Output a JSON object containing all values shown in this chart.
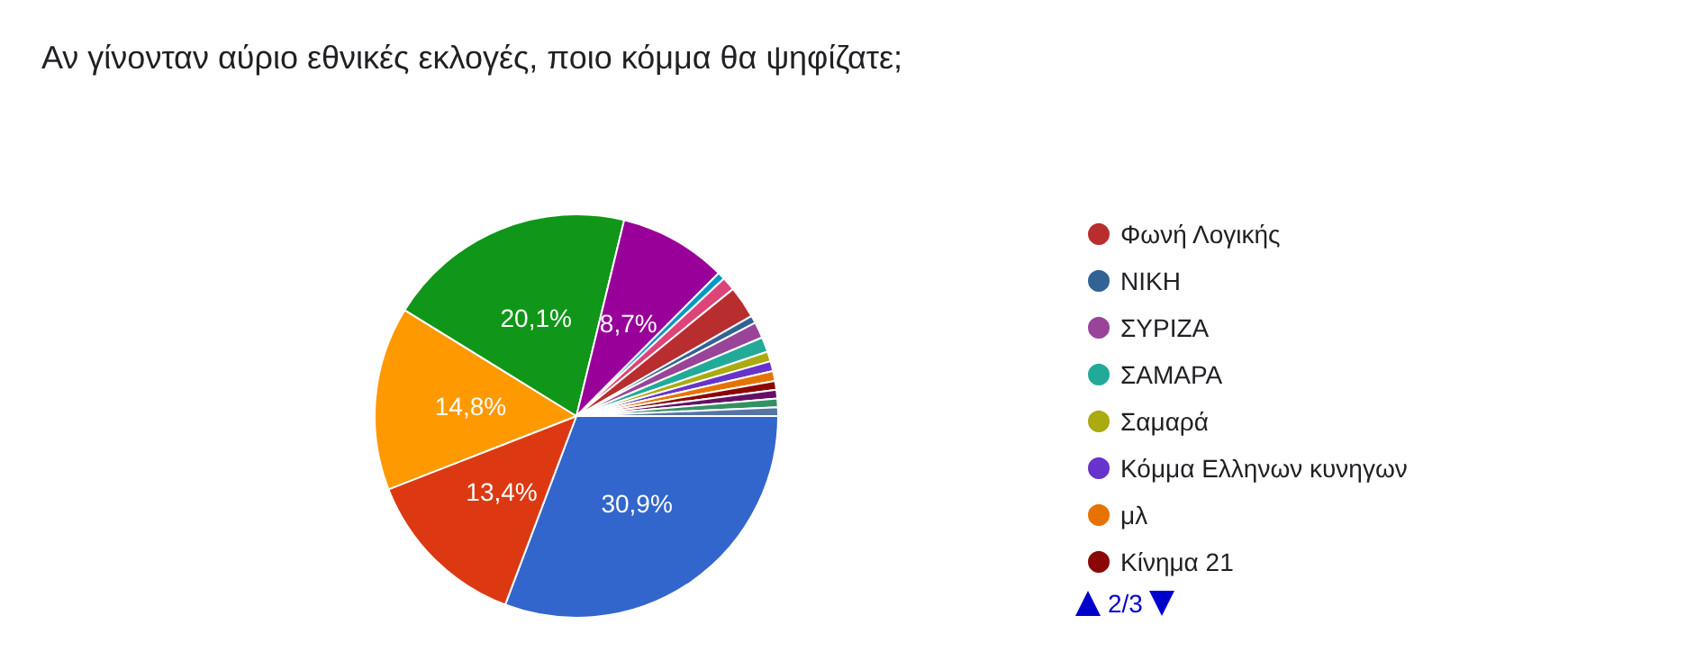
{
  "chart_data": {
    "type": "pie",
    "title": "Αν γίνονταν αύριο εθνικές εκλογές, ποιο κόμμα θα ψηφίζατε;",
    "categories": [
      null,
      null,
      null,
      null,
      null,
      null,
      null,
      null,
      "Φωνή Λογικής",
      "ΝΙΚΗ",
      "ΣΥΡΙΖΑ",
      "ΣΑΜΑΡΑ",
      "Σαμαρά",
      "Κόμμα Ελληνων κυνηγων",
      "μλ",
      "Κίνημα 21",
      null,
      null,
      null
    ],
    "values": [
      30.9,
      13.4,
      14.8,
      20.1,
      8.7,
      0.6,
      1.1,
      null,
      2.6,
      0.6,
      1.3,
      1.2,
      0.8,
      0.8,
      0.8,
      0.7,
      0.7,
      0.7,
      0.7
    ],
    "colors": [
      "#3366cc",
      "#dc3912",
      "#ff9900",
      "#109618",
      "#990099",
      "#0099c6",
      "#dd4477",
      "#66aa00",
      "#b82e2e",
      "#316395",
      "#994499",
      "#22aa99",
      "#aaaa11",
      "#6633cc",
      "#e67300",
      "#8b0707",
      "#651067",
      "#329262",
      "#5574a6"
    ],
    "value_labels": [
      "30,9%",
      "13,4%",
      "14,8%",
      "20,1%",
      "8,7%",
      null,
      null,
      null,
      null,
      null,
      null,
      null,
      null,
      null,
      null,
      null,
      null,
      null,
      null
    ],
    "legend": "right",
    "annotations": [
      "2/3"
    ]
  }
}
